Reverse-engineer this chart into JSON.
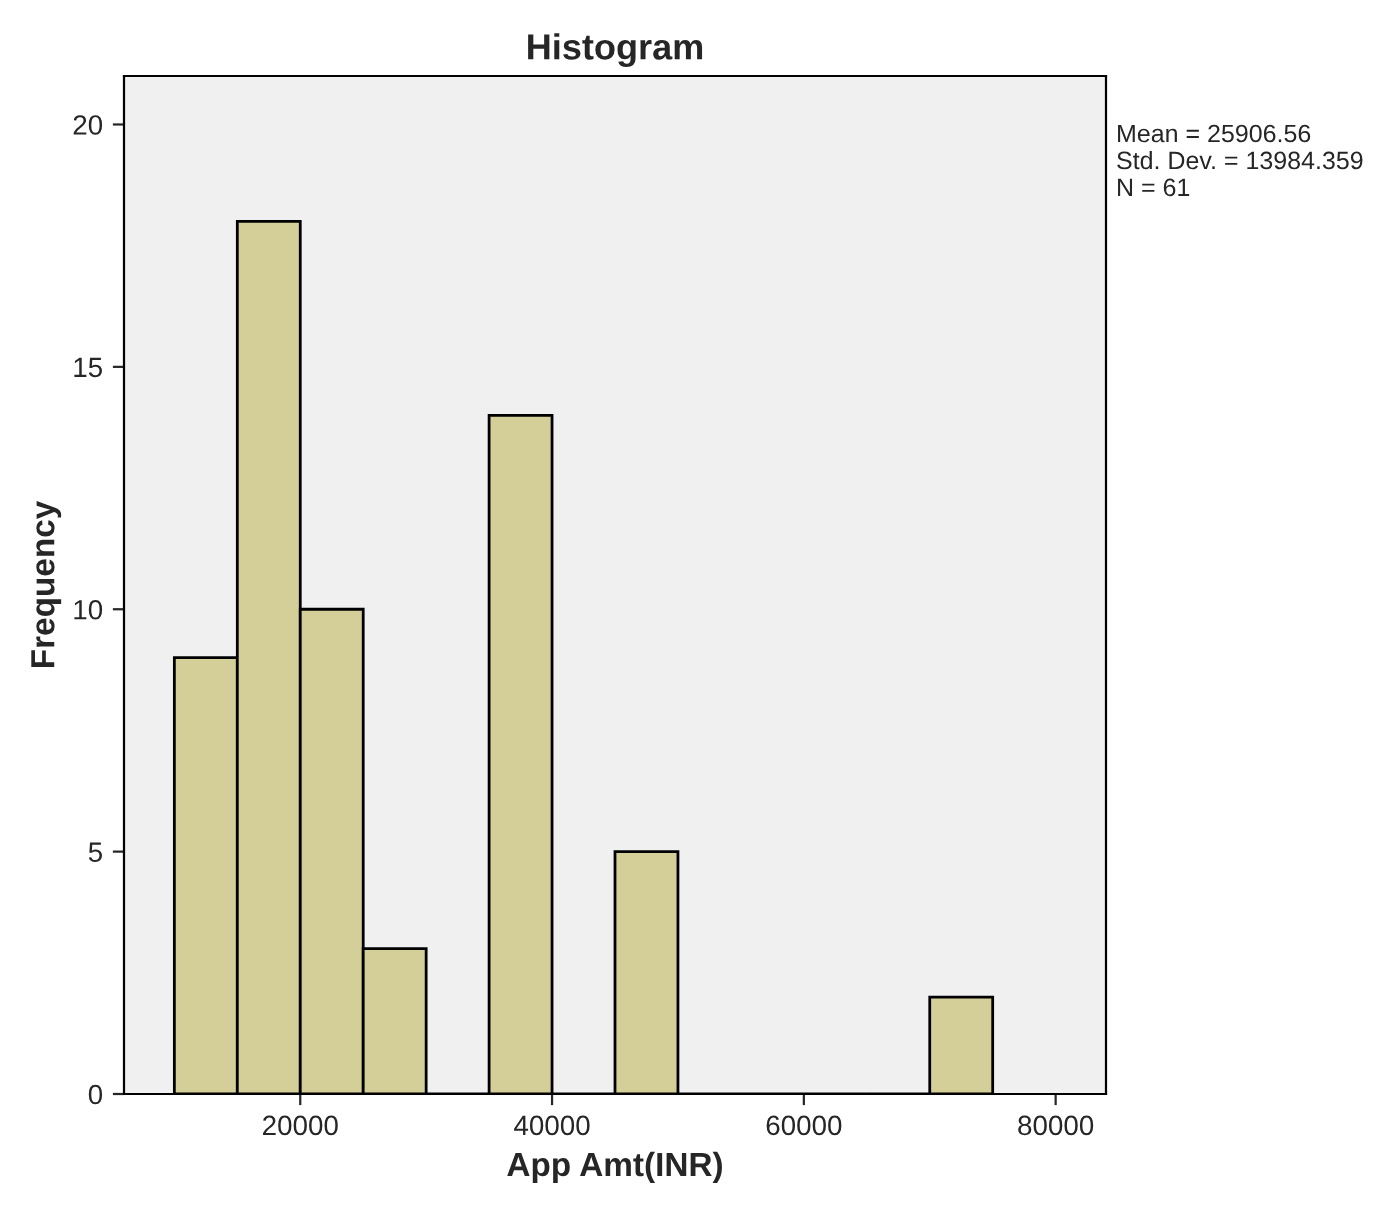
{
  "chart_data": {
    "type": "histogram",
    "title": "Histogram",
    "xlabel": "App Amt(INR)",
    "ylabel": "Frequency",
    "bins": [
      10000,
      15000,
      20000,
      25000,
      30000,
      35000,
      40000,
      45000,
      50000,
      55000,
      60000,
      65000,
      70000,
      75000
    ],
    "values": [
      9,
      18,
      10,
      3,
      0,
      14,
      0,
      5,
      0,
      0,
      0,
      0,
      2
    ],
    "color": "#d4cf98",
    "xlim": [
      6000,
      84000
    ],
    "xticks": [
      20000,
      40000,
      60000,
      80000
    ],
    "ylim": [
      0,
      21
    ],
    "yticks": [
      0,
      5,
      10,
      15,
      20
    ],
    "grid": false,
    "legend": false,
    "annotations": [
      "Mean = 25906.56\nStd. Dev. = 13984.359\nN = 61"
    ]
  }
}
